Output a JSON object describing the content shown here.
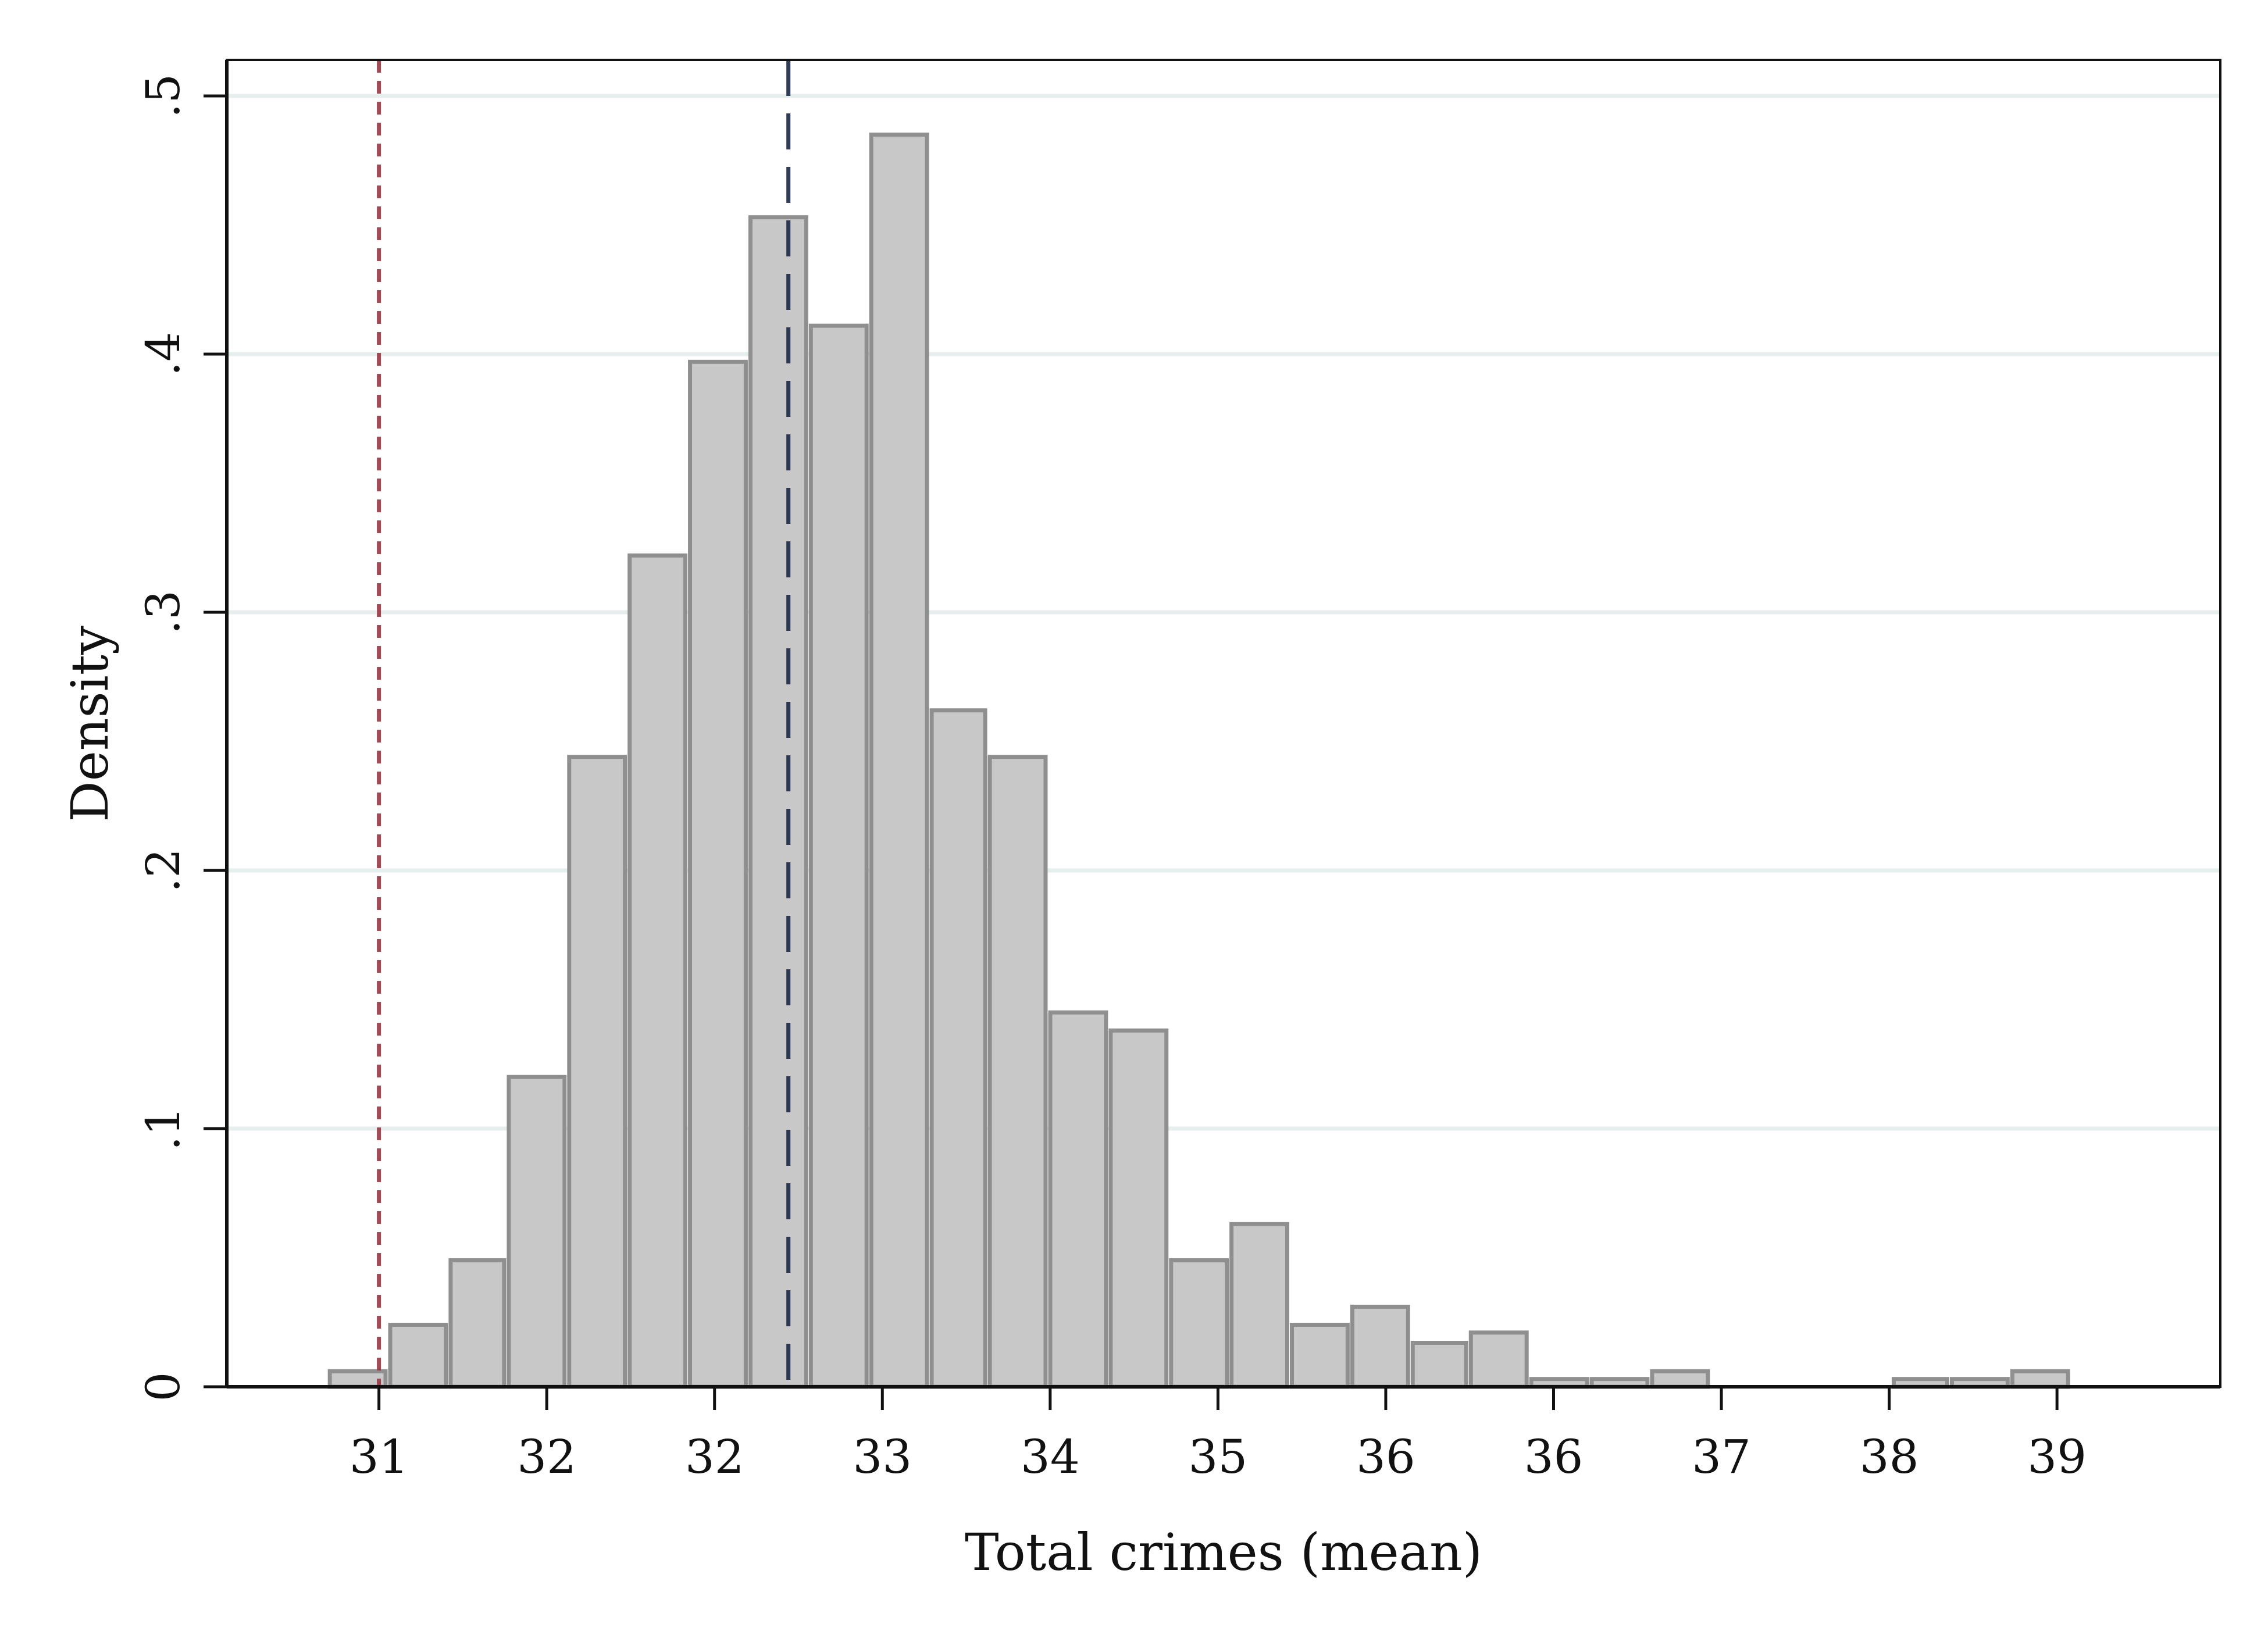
{
  "chart_data": {
    "type": "bar",
    "title": "",
    "xlabel": "Total crimes (mean)",
    "ylabel": "Density",
    "xlim": [
      30.32,
      39.23
    ],
    "ylim": [
      0,
      0.5
    ],
    "grid": true,
    "x_ticks": [
      {
        "value": 31.0,
        "label": "31"
      },
      {
        "value": 31.75,
        "label": "32"
      },
      {
        "value": 32.5,
        "label": "32"
      },
      {
        "value": 33.25,
        "label": "33"
      },
      {
        "value": 34.0,
        "label": "34"
      },
      {
        "value": 34.75,
        "label": "35"
      },
      {
        "value": 35.5,
        "label": "36"
      },
      {
        "value": 36.25,
        "label": "36"
      },
      {
        "value": 37.0,
        "label": "37"
      },
      {
        "value": 37.75,
        "label": "38"
      },
      {
        "value": 38.5,
        "label": "39"
      }
    ],
    "y_ticks": [
      {
        "value": 0,
        "label": "0"
      },
      {
        "value": 0.1,
        "label": ".1"
      },
      {
        "value": 0.2,
        "label": ".2"
      },
      {
        "value": 0.3,
        "label": ".3"
      },
      {
        "value": 0.4,
        "label": ".4"
      },
      {
        "value": 0.5,
        "label": ".5"
      }
    ],
    "bin_edges": [
      30.77,
      31.04,
      31.31,
      31.57,
      31.84,
      32.11,
      32.38,
      32.65,
      32.92,
      33.19,
      33.46,
      33.72,
      33.99,
      34.26,
      34.53,
      34.8,
      35.07,
      35.34,
      35.61,
      35.87,
      36.14,
      36.41,
      36.68,
      36.95,
      37.22,
      37.49,
      37.76,
      38.02,
      38.29,
      38.56
    ],
    "values": [
      0.006,
      0.024,
      0.049,
      0.12,
      0.244,
      0.322,
      0.397,
      0.453,
      0.411,
      0.485,
      0.262,
      0.244,
      0.145,
      0.138,
      0.049,
      0.063,
      0.024,
      0.031,
      0.017,
      0.021,
      0.003,
      0.003,
      0.006,
      0,
      0,
      0,
      0.003,
      0.003,
      0.006
    ],
    "reference_lines": [
      {
        "x": 31.0,
        "color": "#9b3a45",
        "style": "dashed"
      },
      {
        "x": 32.83,
        "color": "#1c2b4a",
        "style": "long-dash"
      }
    ],
    "colors": {
      "bar_fill": "#c8c8c8",
      "bar_edge": "#8f8f8f",
      "grid": "#e6efee",
      "axis": "#111111"
    }
  }
}
